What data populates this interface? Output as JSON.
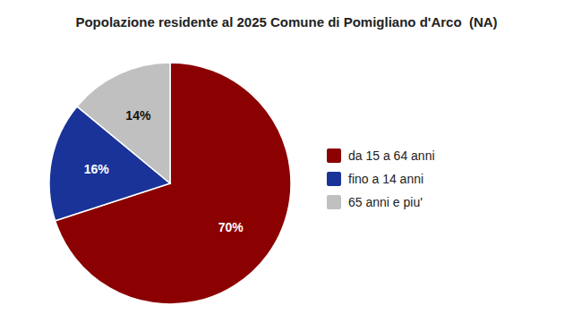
{
  "chart_data": {
    "type": "pie",
    "title": "Popolazione residente al 2025 Comune di Pomigliano d'Arco  (NA)",
    "categories": [
      "da 15 a 64 anni",
      "fino a 14 anni",
      "65 anni e piu'"
    ],
    "values": [
      70,
      16,
      14
    ],
    "value_labels": [
      "70%",
      "16%",
      "14%"
    ],
    "colors": [
      "#8b0000",
      "#1a3399",
      "#c0c0c0"
    ],
    "data_labels": true,
    "legend": "right"
  }
}
